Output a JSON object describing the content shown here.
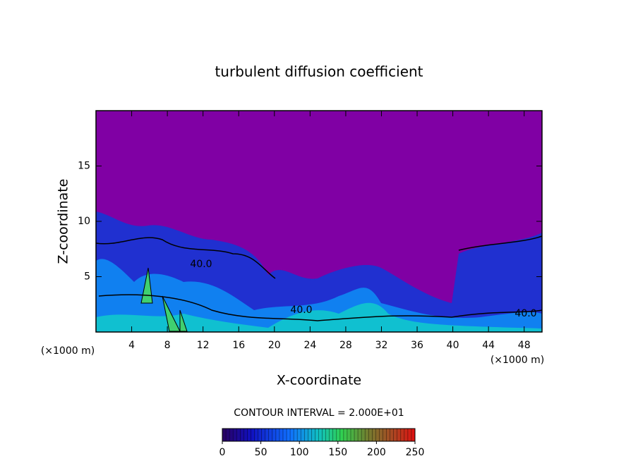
{
  "chart_data": {
    "type": "contour",
    "title": "turbulent diffusion coefficient",
    "xlabel": "X-coordinate",
    "ylabel": "Z-coordinate",
    "x_unit": "(×1000 m)",
    "x_unit_right": "(×1000 m)",
    "xlim": [
      0,
      50
    ],
    "xticks": [
      4,
      8,
      12,
      16,
      20,
      24,
      28,
      32,
      36,
      40,
      44,
      48
    ],
    "ylim": [
      0,
      20
    ],
    "yticks": [
      5,
      10,
      15
    ],
    "contour_labels": [
      "40.0",
      "40.0",
      "40.0"
    ],
    "contour_interval": "CONTOUR INTERVAL = 2.000E+01",
    "colorbar": {
      "lim": [
        0,
        250
      ],
      "ticks": [
        0,
        50,
        100,
        150,
        200,
        250
      ]
    },
    "background_color": "#8000a4"
  }
}
